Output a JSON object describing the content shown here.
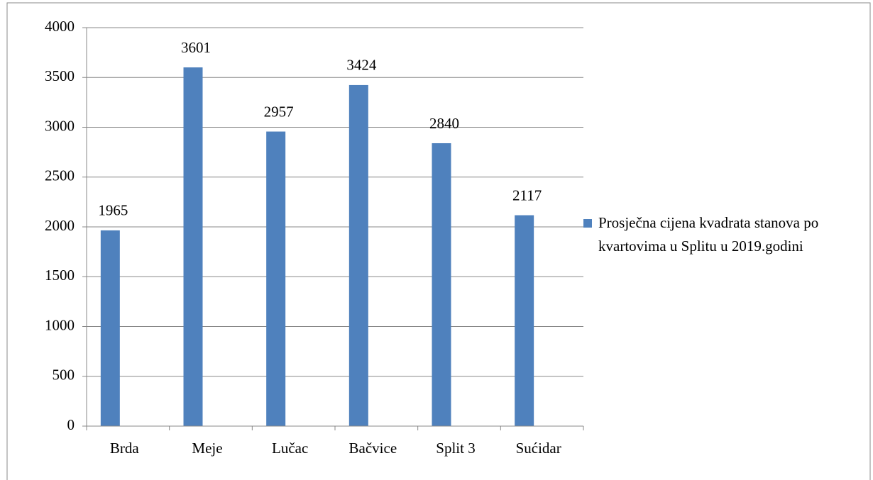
{
  "chart_data": {
    "type": "bar",
    "categories": [
      "Brda",
      "Meje",
      "Lučac",
      "Bačvice",
      "Split 3",
      "Sućidar"
    ],
    "series": [
      {
        "name": "Prosječna cijena kvadrata stanova po kvartovima u Splitu u 2019.godini",
        "color": "#4f81bd",
        "values": [
          1965,
          3601,
          2957,
          3424,
          2840,
          2117
        ]
      }
    ],
    "ylim": [
      0,
      4000
    ],
    "yticks": [
      0,
      500,
      1000,
      1500,
      2000,
      2500,
      3000,
      3500,
      4000
    ],
    "grid": true,
    "legend": "right"
  }
}
